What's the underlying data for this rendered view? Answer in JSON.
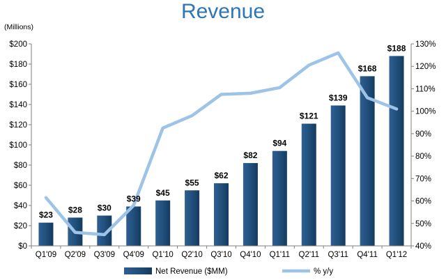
{
  "chart_data": {
    "type": "bar",
    "title": "Revenue",
    "ylabel": "(Millions)",
    "categories": [
      "Q1'09",
      "Q2'09",
      "Q3'09",
      "Q4'09",
      "Q1'10",
      "Q2'10",
      "Q3'10",
      "Q4'10",
      "Q1'11",
      "Q2'11",
      "Q3'11",
      "Q4'11",
      "Q1'12"
    ],
    "series": [
      {
        "name": "Net Revenue ($MM)",
        "type": "bar",
        "axis": "left",
        "color": "#1f4e79",
        "values": [
          23,
          28,
          30,
          39,
          45,
          55,
          62,
          82,
          94,
          121,
          139,
          168,
          188
        ],
        "labels": [
          "$23",
          "$28",
          "$30",
          "$39",
          "$45",
          "$55",
          "$62",
          "$82",
          "$94",
          "$121",
          "$139",
          "$168",
          "$188"
        ]
      },
      {
        "name": "% y/y",
        "type": "line",
        "axis": "right",
        "color": "#9dc3e6",
        "values": [
          61.5,
          46,
          45,
          58,
          92.5,
          98,
          107.5,
          108,
          110.5,
          120.5,
          126,
          106,
          101
        ]
      }
    ],
    "ylim": [
      0,
      200
    ],
    "y2lim": [
      40,
      130
    ],
    "yticks": [
      "$0",
      "$20",
      "$40",
      "$60",
      "$80",
      "$100",
      "$120",
      "$140",
      "$160",
      "$180",
      "$200"
    ],
    "y2ticks": [
      "40%",
      "50%",
      "60%",
      "70%",
      "80%",
      "90%",
      "100%",
      "110%",
      "120%",
      "130%"
    ],
    "legend_position": "bottom",
    "grid": false
  }
}
